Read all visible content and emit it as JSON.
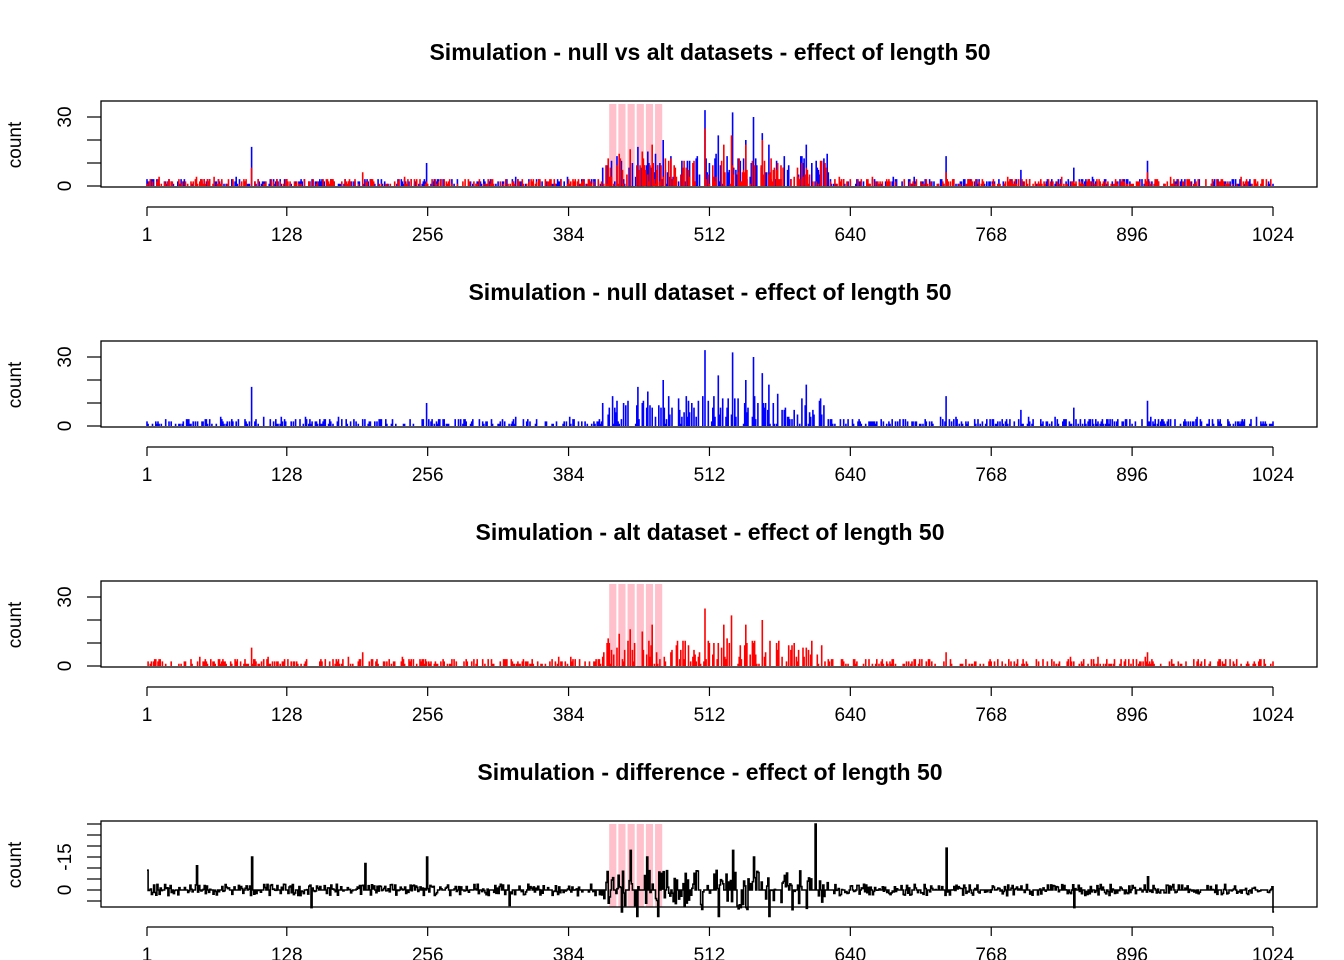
{
  "chart_data": [
    {
      "type": "bar",
      "title": "Simulation - null vs alt datasets - effect of length 50",
      "xlabel": "",
      "ylabel": "count",
      "xlim": [
        1,
        1024
      ],
      "ylim": [
        0,
        45
      ],
      "xticks": [
        "1",
        "128",
        "256",
        "384",
        "512",
        "640",
        "768",
        "896",
        "1024"
      ],
      "yticks": [
        "0",
        "30"
      ],
      "effect_region": {
        "start": 420,
        "end": 470,
        "color": "#ffc0cb"
      },
      "series": [
        {
          "color": "#0000ff",
          "profile": "null",
          "peaks": [
            [
              96,
              17
            ],
            [
              255,
              10
            ],
            [
              447,
              17
            ],
            [
              456,
              15
            ],
            [
              470,
              20
            ],
            [
              508,
              33
            ],
            [
              520,
              22
            ],
            [
              533,
              32
            ],
            [
              545,
              20
            ],
            [
              552,
              30
            ],
            [
              560,
              23
            ],
            [
              566,
              18
            ],
            [
              600,
              18
            ],
            [
              727,
              13
            ],
            [
              795,
              7
            ],
            [
              843,
              8
            ],
            [
              910,
              11
            ]
          ]
        },
        {
          "color": "#ff0000",
          "profile": "alt",
          "peaks": [
            [
              96,
              8
            ],
            [
              197,
              6
            ],
            [
              420,
              12
            ],
            [
              430,
              14
            ],
            [
              440,
              16
            ],
            [
              451,
              15
            ],
            [
              460,
              18
            ],
            [
              508,
              25
            ],
            [
              525,
              18
            ],
            [
              532,
              22
            ],
            [
              545,
              18
            ],
            [
              560,
              20
            ],
            [
              600,
              8
            ],
            [
              727,
              6
            ],
            [
              910,
              6
            ]
          ]
        }
      ]
    },
    {
      "type": "bar",
      "title": "Simulation - null dataset - effect of length 50",
      "xlabel": "",
      "ylabel": "count",
      "xlim": [
        1,
        1024
      ],
      "ylim": [
        0,
        45
      ],
      "xticks": [
        "1",
        "128",
        "256",
        "384",
        "512",
        "640",
        "768",
        "896",
        "1024"
      ],
      "yticks": [
        "0",
        "30"
      ],
      "series": [
        {
          "color": "#0000ff",
          "profile": "null",
          "peaks": [
            [
              96,
              17
            ],
            [
              255,
              10
            ],
            [
              447,
              17
            ],
            [
              456,
              15
            ],
            [
              470,
              20
            ],
            [
              508,
              33
            ],
            [
              520,
              22
            ],
            [
              533,
              32
            ],
            [
              545,
              20
            ],
            [
              552,
              30
            ],
            [
              560,
              23
            ],
            [
              566,
              18
            ],
            [
              600,
              18
            ],
            [
              727,
              13
            ],
            [
              795,
              7
            ],
            [
              843,
              8
            ],
            [
              910,
              11
            ]
          ]
        }
      ]
    },
    {
      "type": "bar",
      "title": "Simulation - alt dataset - effect of length 50",
      "xlabel": "",
      "ylabel": "count",
      "xlim": [
        1,
        1024
      ],
      "ylim": [
        0,
        45
      ],
      "xticks": [
        "1",
        "128",
        "256",
        "384",
        "512",
        "640",
        "768",
        "896",
        "1024"
      ],
      "yticks": [
        "0",
        "30"
      ],
      "effect_region": {
        "start": 420,
        "end": 470,
        "color": "#ffc0cb"
      },
      "series": [
        {
          "color": "#ff0000",
          "profile": "alt",
          "peaks": [
            [
              96,
              8
            ],
            [
              197,
              6
            ],
            [
              420,
              12
            ],
            [
              430,
              14
            ],
            [
              440,
              16
            ],
            [
              451,
              15
            ],
            [
              460,
              18
            ],
            [
              508,
              25
            ],
            [
              525,
              18
            ],
            [
              532,
              22
            ],
            [
              545,
              18
            ],
            [
              560,
              20
            ],
            [
              600,
              8
            ],
            [
              727,
              6
            ],
            [
              910,
              6
            ]
          ]
        }
      ]
    },
    {
      "type": "line",
      "title": "Simulation - difference - effect of length 50",
      "xlabel": "",
      "ylabel": "count",
      "xlim": [
        1,
        1024
      ],
      "ylim": [
        -17,
        12
      ],
      "xticks": [
        "1",
        "128",
        "256",
        "384",
        "512",
        "640",
        "768",
        "896",
        "1024"
      ],
      "yticks": [
        "-15",
        "0"
      ],
      "effect_region": {
        "start": 420,
        "end": 470,
        "color": "#ffc0cb"
      },
      "series": [
        {
          "color": "#000000",
          "profile": "diff",
          "peaks": [
            [
              1,
              -9
            ],
            [
              46,
              -11
            ],
            [
              96,
              -15
            ],
            [
              150,
              8
            ],
            [
              199,
              -12
            ],
            [
              255,
              -15
            ],
            [
              330,
              7
            ],
            [
              420,
              6
            ],
            [
              432,
              10
            ],
            [
              440,
              -18
            ],
            [
              446,
              12
            ],
            [
              455,
              -15
            ],
            [
              465,
              12
            ],
            [
              520,
              12
            ],
            [
              533,
              -18
            ],
            [
              552,
              -15
            ],
            [
              566,
              12
            ],
            [
              608,
              -30
            ],
            [
              727,
              -19
            ],
            [
              843,
              8
            ],
            [
              910,
              -6
            ],
            [
              1024,
              10
            ]
          ]
        }
      ]
    }
  ]
}
